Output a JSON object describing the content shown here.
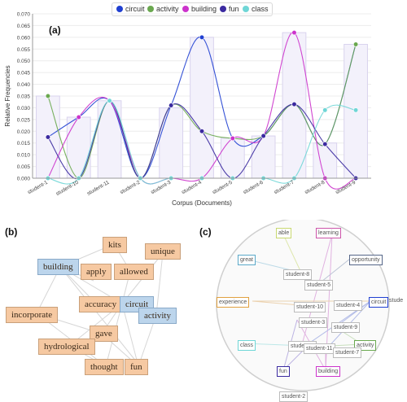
{
  "panels": {
    "a": "(a)",
    "b": "(b)",
    "c": "(c)"
  },
  "legend": [
    {
      "name": "circuit",
      "color": "#1f3fd1"
    },
    {
      "name": "activity",
      "color": "#6aa84f"
    },
    {
      "name": "building",
      "color": "#cc33cc"
    },
    {
      "name": "fun",
      "color": "#3b2aa0"
    },
    {
      "name": "class",
      "color": "#6fd6d6"
    }
  ],
  "chart_data": {
    "type": "line",
    "xlabel": "Corpus (Documents)",
    "ylabel": "Relative Frequencies",
    "ylim": [
      0,
      0.07
    ],
    "yticks": [
      "0.000",
      "0.005",
      "0.010",
      "0.015",
      "0.020",
      "0.025",
      "0.030",
      "0.035",
      "0.040",
      "0.045",
      "0.050",
      "0.055",
      "0.060",
      "0.065",
      "0.070"
    ],
    "categories": [
      "student-1",
      "student-10",
      "student-11",
      "student-2",
      "student-3",
      "student-4",
      "student-5",
      "student-6",
      "student-7",
      "student-8",
      "student-9"
    ],
    "bars": [
      0.035,
      0.026,
      0.033,
      0.0,
      0.03,
      0.06,
      0.017,
      0.018,
      0.062,
      0.015,
      0.057
    ],
    "series": [
      {
        "name": "circuit",
        "color": "#1f3fd1",
        "values": [
          0.0175,
          0.026,
          0.033,
          0.0,
          0.031,
          0.06,
          0.017,
          0.018,
          0.0315,
          0.0145,
          0.057
        ]
      },
      {
        "name": "activity",
        "color": "#6aa84f",
        "values": [
          0.035,
          0.0,
          0.033,
          0.0,
          0.031,
          0.02,
          0.017,
          0.018,
          0.0315,
          0.0145,
          0.057
        ]
      },
      {
        "name": "building",
        "color": "#cc33cc",
        "values": [
          0.0,
          0.026,
          0.033,
          0.0,
          0.0,
          0.0,
          0.017,
          0.018,
          0.062,
          0.0,
          0.0
        ]
      },
      {
        "name": "fun",
        "color": "#3b2aa0",
        "values": [
          0.0175,
          0.0,
          0.033,
          0.0,
          0.031,
          0.02,
          0.0,
          0.018,
          0.0315,
          0.0145,
          0.0
        ]
      },
      {
        "name": "class",
        "color": "#6fd6d6",
        "values": [
          0.0,
          0.0,
          0.033,
          0.0,
          0.0,
          0.0,
          0.0,
          0.0,
          0.0,
          0.029,
          0.029
        ]
      }
    ]
  },
  "keywords": {
    "kits": "kits",
    "unique": "unique",
    "building": "building",
    "apply": "apply",
    "allowed": "allowed",
    "accuracy": "accuracy",
    "circuit": "circuit",
    "activity": "activity",
    "incorporate": "incorporate",
    "gave": "gave",
    "hydrological": "hydrological",
    "thought": "thought",
    "fun": "fun"
  },
  "corpus_terms": {
    "able": "able",
    "learning": "learning",
    "great": "great",
    "opportunity": "opportunity",
    "experience": "experience",
    "circuit": "circuit",
    "class": "class",
    "activity": "activity",
    "fun": "fun",
    "building": "building",
    "stude": "stude"
  },
  "documents": {
    "s8": "student-8",
    "s5": "student-5",
    "s10": "student-10",
    "s4": "student-4",
    "s3": "student-3",
    "s9": "student-9",
    "s6": "student-6",
    "s11": "student-11",
    "s7": "student-7",
    "s2": "student-2"
  }
}
